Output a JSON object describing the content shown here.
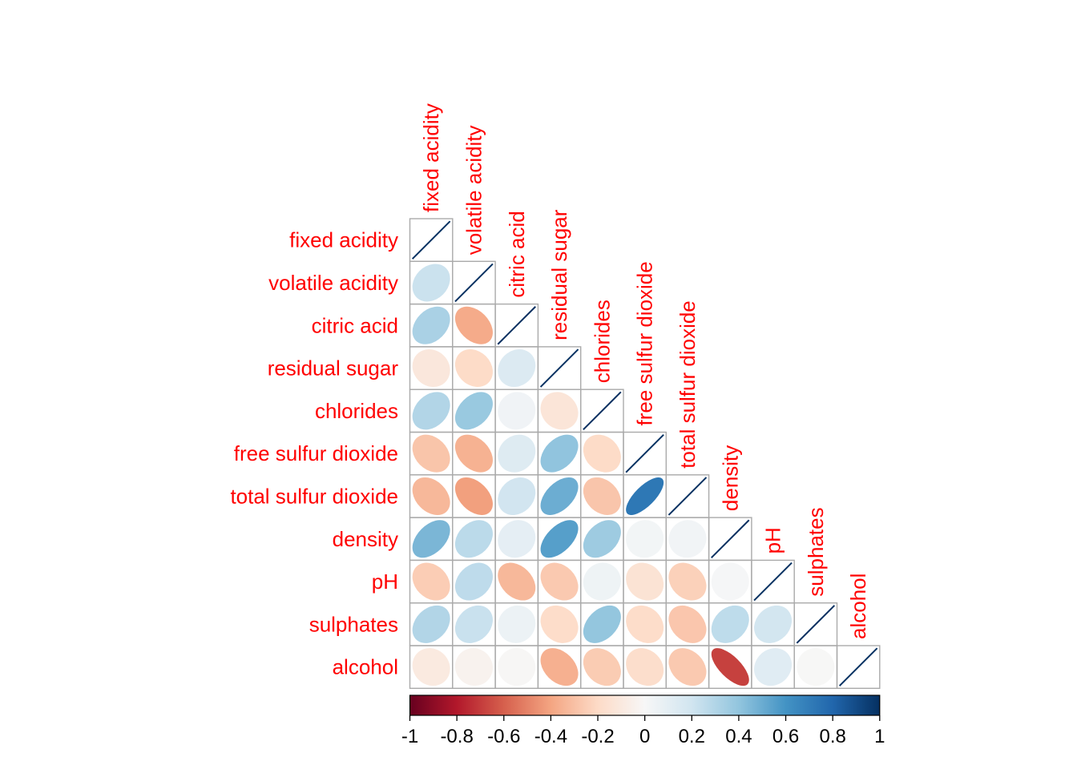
{
  "chart_data": {
    "type": "heatmap",
    "subtype": "correlation-matrix-ellipse",
    "layout_style": "lower-triangular-with-diagonal",
    "title": "",
    "variables": [
      "fixed acidity",
      "volatile acidity",
      "citric acid",
      "residual sugar",
      "chlorides",
      "free sulfur dioxide",
      "total sulfur dioxide",
      "density",
      "pH",
      "sulphates",
      "alcohol"
    ],
    "diagonal_value": 1,
    "lower_triangle": [
      [
        0.219
      ],
      [
        0.324,
        -0.378
      ],
      [
        -0.112,
        -0.196,
        0.142
      ],
      [
        0.298,
        0.377,
        0.039,
        -0.129
      ],
      [
        -0.283,
        -0.353,
        0.133,
        0.403,
        -0.195
      ],
      [
        -0.329,
        -0.414,
        0.195,
        0.495,
        -0.28,
        0.721
      ],
      [
        0.459,
        0.271,
        0.096,
        0.553,
        0.363,
        0.026,
        0.032
      ],
      [
        -0.252,
        0.261,
        -0.33,
        -0.267,
        0.045,
        -0.146,
        -0.238,
        0.012
      ],
      [
        0.299,
        0.226,
        0.056,
        -0.186,
        0.395,
        -0.188,
        -0.276,
        0.259,
        0.192
      ],
      [
        -0.095,
        -0.038,
        -0.01,
        -0.359,
        -0.257,
        -0.18,
        -0.266,
        -0.687,
        0.121,
        -0.003
      ]
    ],
    "colorbar": {
      "min": -1,
      "max": 1,
      "tick_labels": [
        "-1",
        "-0.8",
        "-0.6",
        "-0.4",
        "-0.2",
        "0",
        "0.2",
        "0.4",
        "0.6",
        "0.8",
        "1"
      ],
      "tick_values": [
        -1,
        -0.8,
        -0.6,
        -0.4,
        -0.2,
        0,
        0.2,
        0.4,
        0.6,
        0.8,
        1
      ],
      "position": "bottom"
    },
    "palette_stops": [
      "#67001F",
      "#B2182B",
      "#D6604D",
      "#F4A582",
      "#FDDBC7",
      "#F7F7F7",
      "#D1E5F0",
      "#92C5DE",
      "#4393C4",
      "#2166AC",
      "#053061"
    ],
    "colors": {
      "label_text": "#FF0000",
      "tick_text": "#000000",
      "grid_line": "#AAAAAA",
      "colorbar_border": "#000000",
      "background": "#FFFFFF"
    },
    "grid_on": true,
    "legend_position": "bottom"
  }
}
